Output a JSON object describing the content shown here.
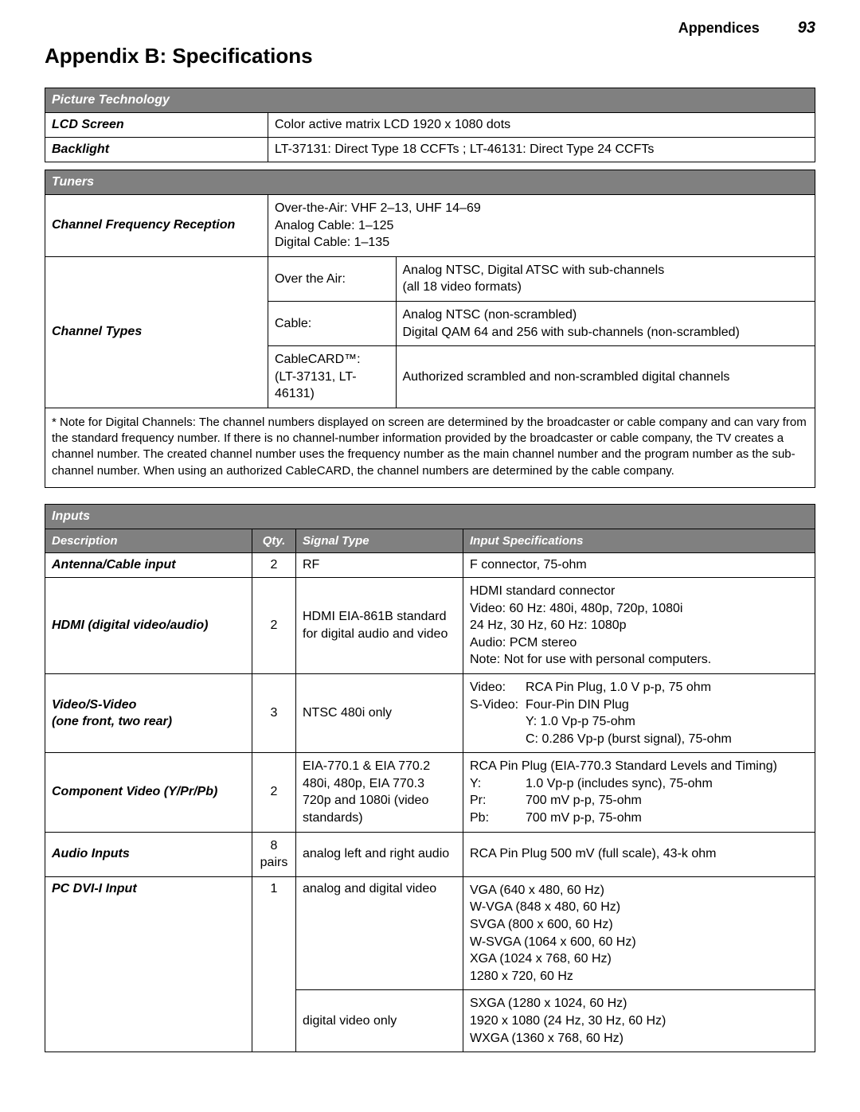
{
  "header": {
    "section": "Appendices",
    "page": "93"
  },
  "title": "Appendix B:  Specifications",
  "colors": {
    "header_bg": "#808080",
    "header_fg": "#ffffff",
    "border": "#000000",
    "page_bg": "#ffffff"
  },
  "picture_technology": {
    "heading": "Picture Technology",
    "rows": [
      {
        "label": "LCD Screen",
        "value": "Color active matrix LCD 1920 x 1080 dots"
      },
      {
        "label": "Backlight",
        "value": "LT-37131: Direct Type 18 CCFTs ; LT-46131: Direct Type 24 CCFTs"
      }
    ]
  },
  "tuners": {
    "heading": "Tuners",
    "freq_label": "Channel Frequency Reception",
    "freq_lines": [
      "Over-the-Air: VHF 2–13, UHF 14–69",
      "Analog Cable: 1–125",
      "Digital Cable: 1–135"
    ],
    "types_label": "Channel Types",
    "types": [
      {
        "name": "Over the Air:",
        "desc": "Analog NTSC, Digital ATSC with sub-channels\n(all 18 video formats)"
      },
      {
        "name": "Cable:",
        "desc": "Analog NTSC (non-scrambled)\nDigital QAM 64 and 256 with sub-channels (non-scrambled)"
      },
      {
        "name": "CableCARD™:\n(LT-37131, LT-46131)",
        "desc": "Authorized scrambled and non-scrambled digital channels"
      }
    ],
    "note": "*  Note for Digital Channels:  The channel numbers displayed on screen are determined by the broadcaster or cable company and can vary from the standard frequency number.  If there is no channel-number information provided by the broadcaster or cable company, the TV creates a channel number.  The created channel number uses the frequency number as the main channel number and the program number as the sub-channel number.  When using an authorized CableCARD, the channel numbers are determined by the cable company."
  },
  "inputs": {
    "heading": "Inputs",
    "columns": {
      "desc": "Description",
      "qty": "Qty.",
      "signal": "Signal Type",
      "spec": "Input Specifications"
    },
    "rows": [
      {
        "desc": "Antenna/Cable input",
        "qty": "2",
        "signal": "RF",
        "spec": "F connector, 75-ohm"
      },
      {
        "desc": "HDMI (digital video/audio)",
        "qty": "2",
        "signal": "HDMI EIA-861B standard for digital audio and video",
        "spec": "HDMI standard connector\nVideo:  60 Hz:  480i, 480p, 720p, 1080i\n             24 Hz, 30 Hz, 60 Hz:  1080p\nAudio:  PCM stereo\nNote:  Not for use with personal computers."
      },
      {
        "desc": "Video/S-Video\n(one front, two rear)",
        "qty": "3",
        "signal": "NTSC 480i only",
        "spec_kv": [
          [
            "Video:",
            "RCA Pin Plug, 1.0 V p-p, 75 ohm"
          ],
          [
            "S-Video:",
            "Four-Pin DIN Plug"
          ],
          [
            "",
            "Y: 1.0 Vp-p 75-ohm"
          ],
          [
            "",
            "C: 0.286 Vp-p (burst signal), 75-ohm"
          ]
        ]
      },
      {
        "desc": "Component Video (Y/Pr/Pb)",
        "qty": "2",
        "signal": "EIA-770.1 & EIA 770.2 480i, 480p, EIA 770.3 720p and 1080i (video standards)",
        "spec_intro": "RCA Pin Plug (EIA-770.3 Standard Levels and Timing)",
        "spec_kv": [
          [
            "Y:",
            "1.0 Vp-p (includes sync), 75-ohm"
          ],
          [
            "Pr:",
            "700 mV p-p, 75-ohm"
          ],
          [
            "Pb:",
            "700 mV p-p, 75-ohm"
          ]
        ]
      },
      {
        "desc": "Audio Inputs",
        "qty": "8 pairs",
        "signal": "analog left and right audio",
        "spec": "RCA Pin Plug 500 mV (full scale), 43-k ohm"
      },
      {
        "desc": "PC DVI-I Input",
        "qty": "1",
        "signal": "analog and digital video",
        "spec": "VGA (640 x 480, 60 Hz)\nW-VGA (848 x 480, 60 Hz)\nSVGA (800 x 600, 60 Hz)\nW-SVGA (1064 x 600, 60 Hz)\nXGA (1024 x 768, 60 Hz)\n1280 x 720, 60 Hz"
      },
      {
        "desc": "",
        "qty": "",
        "signal": "digital video only",
        "spec": "SXGA (1280 x 1024, 60 Hz)\n1920 x 1080 (24 Hz, 30 Hz, 60 Hz)\nWXGA (1360 x 768, 60 Hz)"
      }
    ]
  }
}
